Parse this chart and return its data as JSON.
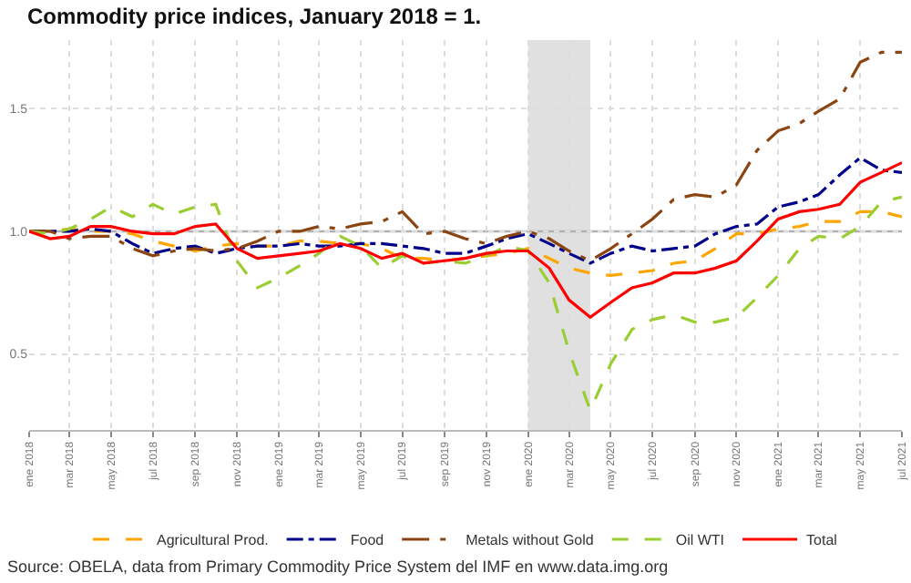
{
  "chart_data": {
    "type": "line",
    "title": "Commodity price indices, January 2018 = 1.",
    "x": [
      "2018-01",
      "2018-02",
      "2018-03",
      "2018-04",
      "2018-05",
      "2018-06",
      "2018-07",
      "2018-08",
      "2018-09",
      "2018-10",
      "2018-11",
      "2018-12",
      "2019-01",
      "2019-02",
      "2019-03",
      "2019-04",
      "2019-05",
      "2019-06",
      "2019-07",
      "2019-08",
      "2019-09",
      "2019-10",
      "2019-11",
      "2019-12",
      "2020-01",
      "2020-02",
      "2020-03",
      "2020-04",
      "2020-05",
      "2020-06",
      "2020-07",
      "2020-08",
      "2020-09",
      "2020-10",
      "2020-11",
      "2020-12",
      "2021-01",
      "2021-02",
      "2021-03",
      "2021-04",
      "2021-05",
      "2021-06",
      "2021-07"
    ],
    "series": [
      {
        "name": "Agricultural Prod.",
        "color": "#ffa500",
        "line_style": "dashed",
        "values": [
          1.0,
          1.0,
          1.01,
          1.0,
          1.0,
          0.99,
          0.96,
          0.94,
          0.92,
          0.94,
          0.95,
          0.94,
          0.94,
          0.96,
          0.96,
          0.95,
          0.95,
          0.93,
          0.89,
          0.89,
          0.88,
          0.89,
          0.9,
          0.91,
          0.93,
          0.89,
          0.85,
          0.83,
          0.82,
          0.83,
          0.84,
          0.87,
          0.88,
          0.93,
          0.99,
          0.99,
          1.01,
          1.02,
          1.04,
          1.04,
          1.08,
          1.08,
          1.06
        ]
      },
      {
        "name": "Food",
        "color": "#00008b",
        "line_style": "dashdot",
        "values": [
          1.0,
          1.0,
          1.0,
          1.01,
          1.0,
          0.95,
          0.91,
          0.93,
          0.94,
          0.91,
          0.93,
          0.94,
          0.94,
          0.95,
          0.94,
          0.94,
          0.95,
          0.95,
          0.94,
          0.93,
          0.91,
          0.91,
          0.94,
          0.97,
          0.99,
          0.95,
          0.91,
          0.87,
          0.91,
          0.94,
          0.92,
          0.93,
          0.94,
          0.99,
          1.02,
          1.03,
          1.1,
          1.12,
          1.15,
          1.23,
          1.3,
          1.25,
          1.24
        ]
      },
      {
        "name": "Metals without Gold",
        "color": "#8b4513",
        "line_style": "longdashdot",
        "values": [
          1.0,
          1.0,
          0.97,
          0.98,
          0.98,
          0.93,
          0.9,
          0.92,
          0.93,
          0.92,
          0.93,
          0.96,
          1.0,
          1.0,
          1.02,
          1.01,
          1.03,
          1.04,
          1.08,
          0.99,
          1.0,
          0.97,
          0.95,
          0.98,
          1.0,
          0.97,
          0.92,
          0.88,
          0.93,
          0.99,
          1.05,
          1.13,
          1.15,
          1.14,
          1.19,
          1.33,
          1.41,
          1.44,
          1.49,
          1.54,
          1.69,
          1.73,
          1.73
        ]
      },
      {
        "name": "Oil WTI",
        "color": "#9acd32",
        "line_style": "dashed",
        "values": [
          1.0,
          0.99,
          1.01,
          1.05,
          1.1,
          1.06,
          1.11,
          1.07,
          1.1,
          1.11,
          0.88,
          0.77,
          0.81,
          0.86,
          0.91,
          0.98,
          0.94,
          0.85,
          0.9,
          0.87,
          0.88,
          0.87,
          0.9,
          0.94,
          0.92,
          0.79,
          0.51,
          0.27,
          0.46,
          0.6,
          0.64,
          0.66,
          0.63,
          0.63,
          0.65,
          0.73,
          0.82,
          0.93,
          0.98,
          0.97,
          1.02,
          1.12,
          1.14
        ]
      },
      {
        "name": "Total",
        "color": "#ff0000",
        "line_style": "solid",
        "values": [
          1.0,
          0.97,
          0.98,
          1.02,
          1.02,
          1.0,
          0.99,
          0.99,
          1.02,
          1.03,
          0.93,
          0.89,
          0.9,
          0.91,
          0.92,
          0.95,
          0.93,
          0.89,
          0.91,
          0.87,
          0.88,
          0.89,
          0.91,
          0.92,
          0.92,
          0.85,
          0.72,
          0.65,
          0.71,
          0.77,
          0.79,
          0.83,
          0.83,
          0.85,
          0.88,
          0.96,
          1.05,
          1.08,
          1.09,
          1.11,
          1.2,
          1.24,
          1.28
        ]
      }
    ],
    "xlim": [
      "2018-01",
      "2021-07"
    ],
    "xticks": [
      {
        "value": "2018-01",
        "label": "ene 2018"
      },
      {
        "value": "2018-03",
        "label": "mar 2018"
      },
      {
        "value": "2018-05",
        "label": "may 2018"
      },
      {
        "value": "2018-07",
        "label": "jul 2018"
      },
      {
        "value": "2018-09",
        "label": "sep 2018"
      },
      {
        "value": "2018-11",
        "label": "nov 2018"
      },
      {
        "value": "2019-01",
        "label": "ene 2019"
      },
      {
        "value": "2019-03",
        "label": "mar 2019"
      },
      {
        "value": "2019-05",
        "label": "may 2019"
      },
      {
        "value": "2019-07",
        "label": "jul 2019"
      },
      {
        "value": "2019-09",
        "label": "sep 2019"
      },
      {
        "value": "2019-11",
        "label": "nov 2019"
      },
      {
        "value": "2020-01",
        "label": "ene 2020"
      },
      {
        "value": "2020-03",
        "label": "mar 2020"
      },
      {
        "value": "2020-05",
        "label": "may 2020"
      },
      {
        "value": "2020-07",
        "label": "jul 2020"
      },
      {
        "value": "2020-09",
        "label": "sep 2020"
      },
      {
        "value": "2020-11",
        "label": "nov 2020"
      },
      {
        "value": "2021-01",
        "label": "ene 2021"
      },
      {
        "value": "2021-03",
        "label": "mar 2021"
      },
      {
        "value": "2021-05",
        "label": "may 2021"
      },
      {
        "value": "2021-07",
        "label": "jul 2021"
      }
    ],
    "ylim": [
      0.19,
      1.78
    ],
    "yticks": [
      {
        "value": 0.5,
        "label": "0.5"
      },
      {
        "value": 1.0,
        "label": "1.0"
      },
      {
        "value": 1.5,
        "label": "1.5"
      }
    ],
    "ref_lines": [
      {
        "axis": "y",
        "value": 1.0,
        "color": "#b0b0b0",
        "line_style": "solid"
      }
    ],
    "bands": [
      {
        "axis": "x",
        "from": "2020-01",
        "to": "2020-04",
        "color": "#e0e0e0"
      }
    ],
    "grid": true,
    "legend": "bottom",
    "marker": "none",
    "annotations": [
      "Source: OBELA, data from Primary Commodity Price System del IMF en www.data.img.org"
    ]
  }
}
